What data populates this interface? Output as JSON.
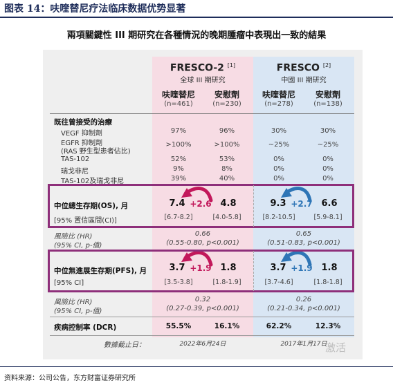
{
  "figure_title": "图表 14：呋喹替尼疗法临床数据优势显著",
  "main_title": "兩項關鍵性 III 期研究在各種情況的晚期腫瘤中表現出一致的結果",
  "trials": [
    {
      "name": "FRESCO-2",
      "ref": "[1]",
      "subtitle": "全球 III 期研究"
    },
    {
      "name": "FRESCO",
      "ref": "[2]",
      "subtitle": "中國 III 期研究"
    }
  ],
  "arm_headers": [
    {
      "drug": "呋喹替尼",
      "n": "(n=461)"
    },
    {
      "drug": "安慰劑",
      "n": "(n=230)"
    },
    {
      "drug": "呋喹替尼",
      "n": "(n=278)"
    },
    {
      "drug": "安慰劑",
      "n": "(n=138)"
    }
  ],
  "prior_treatment": {
    "heading": "既往曾接受的治療",
    "rows": [
      {
        "label": "VEGF 抑制劑",
        "values": [
          "97%",
          "96%",
          "30%",
          "30%"
        ]
      },
      {
        "label": "EGFR 抑制劑",
        "label2": "(RAS 野生型患者佔比)",
        "values": [
          ">100%",
          ">100%",
          "~25%",
          "~25%"
        ]
      },
      {
        "label": "TAS-102",
        "values": [
          "52%",
          "53%",
          "0%",
          "0%"
        ]
      },
      {
        "label": "瑞戈非尼",
        "values": [
          "9%",
          "8%",
          "0%",
          "0%"
        ]
      },
      {
        "label": "TAS-102及瑞戈非尼",
        "values": [
          "39%",
          "40%",
          "0%",
          "0%"
        ]
      }
    ]
  },
  "os": {
    "label": "中位總生存期(OS), 月",
    "ci_label": "[95% 置信區間(CI)]",
    "values": [
      "7.4",
      "4.8",
      "9.3",
      "6.6"
    ],
    "ci": [
      "[6.7-8.2]",
      "[4.0-5.8]",
      "[8.2-10.5]",
      "[5.9-8.1]"
    ],
    "diff": [
      "+2.6",
      "+2.7"
    ]
  },
  "os_hr": {
    "label": "風險比 (HR)",
    "label2": "(95% CI, p-值)",
    "values": [
      "0.66",
      "0.65"
    ],
    "details": [
      "(0.55-0.80, p<0.001)",
      "(0.51-0.83, p<0.001)"
    ]
  },
  "pfs": {
    "label": "中位無進展生存期(PFS), 月",
    "ci_label": "[95% CI]",
    "values": [
      "3.7",
      "1.8",
      "3.7",
      "1.8"
    ],
    "ci": [
      "[3.5-3.8]",
      "[1.8-1.9]",
      "[3.7-4.6]",
      "[1.8-1.8]"
    ],
    "diff": [
      "+1.9",
      "+1.9"
    ]
  },
  "pfs_hr": {
    "label": "風險比 (HR)",
    "label2": "(95% CI, p-值)",
    "values": [
      "0.32",
      "0.26"
    ],
    "details": [
      "(0.27-0.39, p<0.001)",
      "(0.21-0.34, p<0.001)"
    ]
  },
  "dcr": {
    "label": "疾病控制率 (DCR)",
    "values": [
      "55.5%",
      "16.1%",
      "62.2%",
      "12.3%"
    ]
  },
  "cutoff": {
    "label": "數據截止日：",
    "values": [
      "2022年6月24日",
      "2017年1月17日"
    ]
  },
  "watermark": "激活",
  "source": "资料来源：公司公告，东方财富证券研究所",
  "colors": {
    "pink_col": "#f7dce4",
    "blue_col": "#d9e6f4",
    "box": "#8e2f7a",
    "pink_arrow": "#c2185b",
    "blue_arrow": "#2e75b6"
  }
}
